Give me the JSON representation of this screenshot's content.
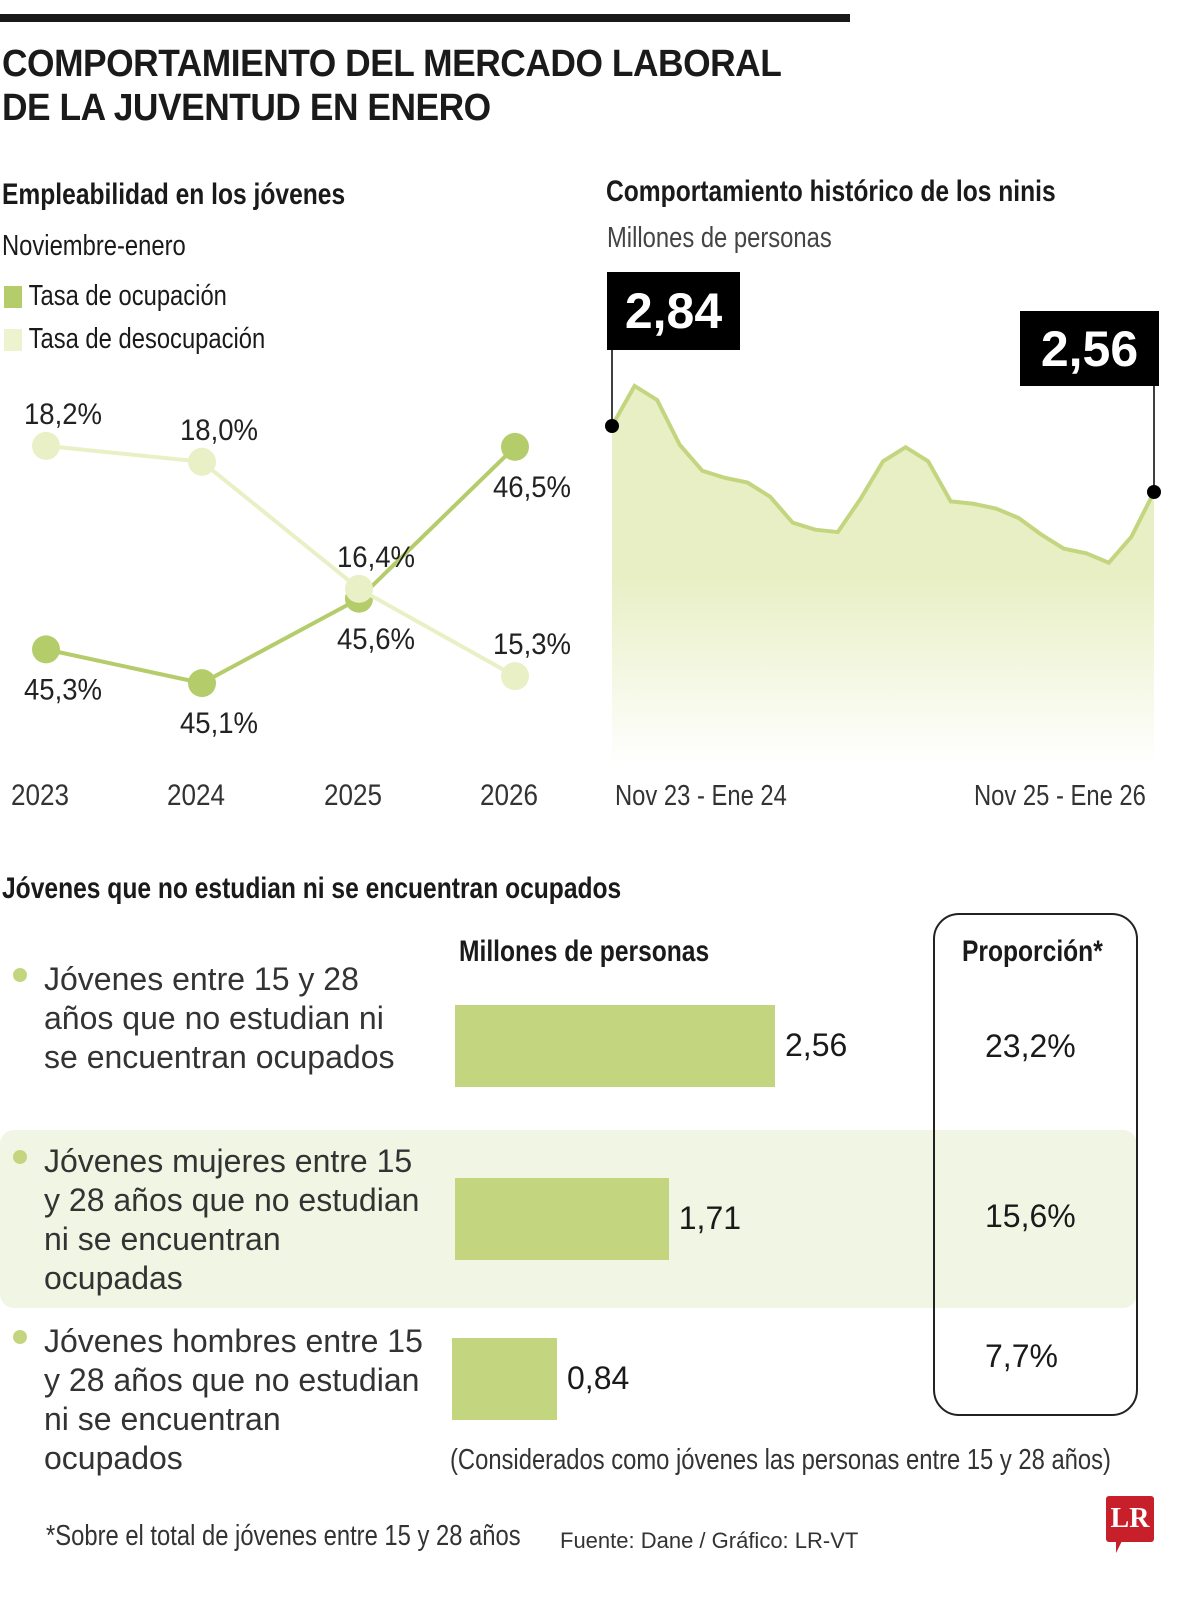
{
  "title_line1": "COMPORTAMIENTO DEL MERCADO LABORAL",
  "title_line2": "DE LA JUVENTUD EN ENERO",
  "colors": {
    "accent": "#c3d67f",
    "light": "#e9f0c6",
    "area": "#e8efc4",
    "logo": "#c8202a"
  },
  "chart_data": [
    {
      "type": "line",
      "title": "Empleabilidad en los jóvenes",
      "subtitle": "Noviembre-enero",
      "categories": [
        "2023",
        "2024",
        "2025",
        "2026"
      ],
      "series": [
        {
          "name": "Tasa de ocupación",
          "color": "#b5cc6a",
          "values": [
            45.3,
            45.1,
            45.6,
            46.5
          ],
          "labels": [
            "45,3%",
            "45,1%",
            "45,6%",
            "46,5%"
          ]
        },
        {
          "name": "Tasa de desocupación",
          "color": "#e9f0c6",
          "values": [
            18.2,
            18.0,
            16.4,
            15.3
          ],
          "labels": [
            "18,2%",
            "18,0%",
            "16,4%",
            "15,3%"
          ]
        }
      ],
      "legend": "top-left"
    },
    {
      "type": "area",
      "title": "Comportamiento histórico de los ninis",
      "subtitle": "Millones de personas",
      "x_labels": [
        "Nov 23 - Ene 24",
        "Nov 25 - Ene 26"
      ],
      "values": [
        2.84,
        3.01,
        2.95,
        2.76,
        2.65,
        2.62,
        2.6,
        2.54,
        2.43,
        2.4,
        2.39,
        2.53,
        2.69,
        2.75,
        2.69,
        2.52,
        2.51,
        2.49,
        2.45,
        2.38,
        2.32,
        2.3,
        2.26,
        2.37,
        2.56
      ],
      "callouts": [
        {
          "label": "2,84",
          "index": 0
        },
        {
          "label": "2,56",
          "index": 24
        }
      ]
    },
    {
      "type": "bar",
      "title": "Jóvenes que no estudian ni se encuentran ocupados",
      "value_header": "Millones de personas",
      "share_header": "Proporción*",
      "categories": [
        "Jóvenes entre 15 y 28 años que no estudian ni se encuentran ocupados",
        "Jóvenes mujeres entre 15 y 28 años que no estudian ni se encuentran ocupadas",
        "Jóvenes hombres entre 15 y 28 años que no estudian ni se encuentran ocupados"
      ],
      "values": [
        2.56,
        1.71,
        0.84
      ],
      "value_labels": [
        "2,56",
        "1,71",
        "0,84"
      ],
      "shares": [
        "23,2%",
        "15,6%",
        "7,7%"
      ],
      "note": "(Considerados como jóvenes las personas entre 15 y 28 años)"
    }
  ],
  "footnote": "*Sobre el total de jóvenes entre 15 y 28 años",
  "source": "Fuente: Dane / Gráfico: LR-VT",
  "logo": "LR"
}
